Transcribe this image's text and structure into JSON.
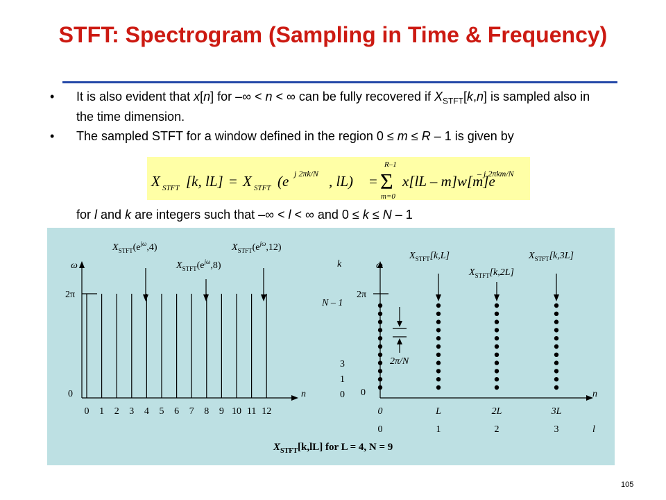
{
  "title": "STFT: Spectrogram (Sampling in Time & Frequency)",
  "bullets": [
    {
      "marker": "•",
      "parts": [
        "It is also evident that ",
        "x",
        "[",
        "n",
        "] for –∞ < ",
        "n",
        " < ∞ can be fully recovered if ",
        "X",
        "STFT",
        "[",
        "k",
        ",",
        "n",
        "] is sampled also in the time dimension."
      ]
    },
    {
      "marker": "•",
      "parts": [
        "The sampled STFT for a window defined in the region 0 ≤ ",
        "m",
        " ≤ ",
        "R",
        " – 1 is given by"
      ]
    }
  ],
  "equation": {
    "lhs_X": "X",
    "lhs_sub": "STFT",
    "lhs_args": "[k, lL]",
    "mid_X": "X",
    "mid_sub": "STFT",
    "mid_args": "(e",
    "mid_exp": "j 2πk/N",
    "mid_tail": ", lL)",
    "sum_upper": "R–1",
    "sum_lower": "m=0",
    "sum_sym": "Σ",
    "rhs": "x[lL – m]w[m]e",
    "rhs_exp": "– j 2πkm/N"
  },
  "follow": {
    "parts": [
      "for ",
      "l",
      " and ",
      "k",
      " are integers such that –∞ < ",
      "l",
      " < ∞ and 0 ≤ ",
      "k",
      " ≤ ",
      "N",
      " – 1"
    ]
  },
  "left_plot": {
    "ylabel": "ω",
    "xlabel": "n",
    "ytick_top": "2π",
    "ytick_zero": "0",
    "xticks": [
      "0",
      "1",
      "2",
      "3",
      "4",
      "5",
      "6",
      "7",
      "8",
      "9",
      "10",
      "11",
      "12"
    ],
    "annotations": [
      {
        "X": "X",
        "sub": "STFT",
        "arg": "(e",
        "sup": "jω",
        "tail": ",4)"
      },
      {
        "X": "X",
        "sub": "STFT",
        "arg": "(e",
        "sup": "jω",
        "tail": ",8)"
      },
      {
        "X": "X",
        "sub": "STFT",
        "arg": "(e",
        "sup": "jω",
        "tail": ",12)"
      }
    ]
  },
  "right_plot": {
    "klabel": "k",
    "wlabel": "ω",
    "xlabel": "n",
    "llabel": "l",
    "ytick_top": "2π",
    "N1": "N – 1",
    "zero": "0",
    "kticks": [
      "3",
      "1",
      "0"
    ],
    "spacing_label": "2π/N",
    "xticks": [
      "0",
      "L",
      "2L",
      "3L"
    ],
    "lticks": [
      "0",
      "1",
      "2",
      "3"
    ],
    "annotations": [
      {
        "X": "X",
        "sub": "STFT",
        "args": "[k,L]"
      },
      {
        "X": "X",
        "sub": "STFT",
        "args": "[k,2L]"
      },
      {
        "X": "X",
        "sub": "STFT",
        "args": "[k,3L]"
      }
    ]
  },
  "caption": {
    "X": "X",
    "sub": "STFT",
    "rest": "[k,lL] for L = 4, N = 9"
  },
  "page_number": "105",
  "colors": {
    "title": "#cc1a12",
    "rule": "#2448a8",
    "equation_bg": "#ffffa6",
    "panel_bg": "#bde0e3"
  }
}
